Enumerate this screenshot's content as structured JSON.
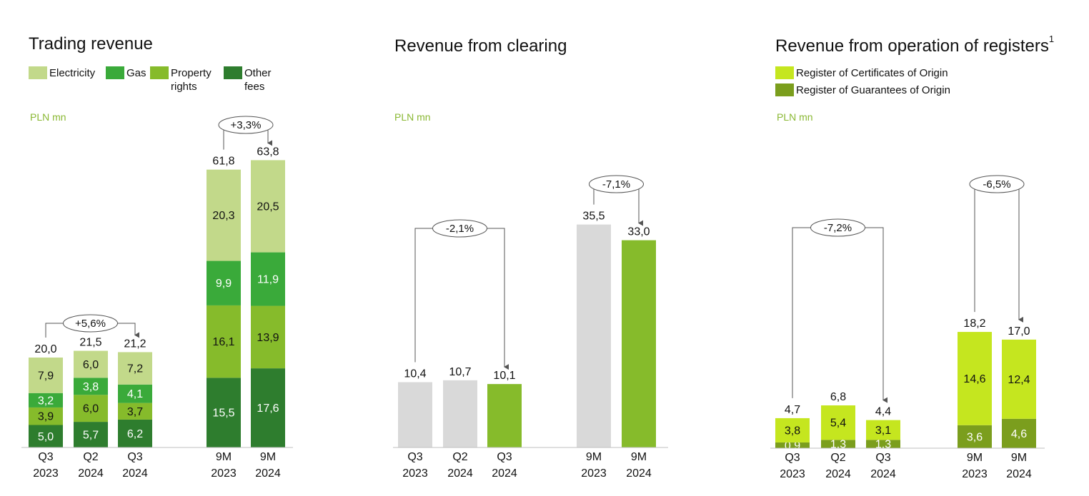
{
  "colors": {
    "electricity": "#c2d98a",
    "gas": "#3aaa3a",
    "property_rights": "#86bb2b",
    "other_fees": "#2e7d2e",
    "gray": "#d9d9d9",
    "clearing_green": "#86bb2b",
    "certificates": "#c5e61f",
    "guarantees": "#7b9e1d",
    "unit_text": "#8ab833"
  },
  "panels": [
    {
      "title": "Trading revenue",
      "superscript": "",
      "unit": "PLN mn",
      "legend": [
        {
          "label": "Electricity",
          "color": "#c2d98a"
        },
        {
          "label": "Gas",
          "color": "#3aaa3a"
        },
        {
          "label": "Property rights",
          "color": "#86bb2b"
        },
        {
          "label": "Other fees",
          "color": "#2e7d2e"
        }
      ]
    },
    {
      "title": "Revenue from clearing",
      "superscript": "",
      "unit": "PLN mn",
      "legend": []
    },
    {
      "title": "Revenue from operation of registers",
      "superscript": "1",
      "unit": "PLN mn",
      "legend": [
        {
          "label": "Register of Certificates of Origin",
          "color": "#c5e61f"
        },
        {
          "label": "Register of Guarantees of Origin",
          "color": "#7b9e1d"
        }
      ]
    }
  ],
  "chart_data": [
    {
      "type": "bar",
      "stacked": true,
      "title": "Trading revenue",
      "ylabel": "PLN mn",
      "categories": [
        "Q3 2023",
        "Q2 2024",
        "Q3 2024",
        "9M 2023",
        "9M 2024"
      ],
      "series": [
        {
          "name": "Other fees",
          "values": [
            5.0,
            5.7,
            6.2,
            15.5,
            17.6
          ],
          "labels": [
            "5,0",
            "5,7",
            "6,2",
            "15,5",
            "17,6"
          ]
        },
        {
          "name": "Property rights",
          "values": [
            3.9,
            6.0,
            3.7,
            16.1,
            13.9
          ],
          "labels": [
            "3,9",
            "6,0",
            "3,7",
            "16,1",
            "13,9"
          ]
        },
        {
          "name": "Gas",
          "values": [
            3.2,
            3.8,
            4.1,
            9.9,
            11.9
          ],
          "labels": [
            "3,2",
            "3,8",
            "4,1",
            "9,9",
            "11,9"
          ]
        },
        {
          "name": "Electricity",
          "values": [
            7.9,
            6.0,
            7.2,
            20.3,
            20.5
          ],
          "labels": [
            "7,9",
            "6,0",
            "7,2",
            "20,3",
            "20,5"
          ]
        }
      ],
      "totals": [
        20.0,
        21.5,
        21.2,
        61.8,
        63.8
      ],
      "total_labels": [
        "20,0",
        "21,5",
        "21,2",
        "61,8",
        "63,8"
      ],
      "changes": [
        {
          "label": "+5,6%",
          "from": "Q3 2023",
          "to": "Q3 2024"
        },
        {
          "label": "+3,3%",
          "from": "9M 2023",
          "to": "9M 2024"
        }
      ]
    },
    {
      "type": "bar",
      "title": "Revenue from clearing",
      "ylabel": "PLN mn",
      "categories": [
        "Q3 2023",
        "Q2 2024",
        "Q3 2024",
        "9M 2023",
        "9M 2024"
      ],
      "values": [
        10.4,
        10.7,
        10.1,
        35.5,
        33.0
      ],
      "value_labels": [
        "10,4",
        "10,7",
        "10,1",
        "35,5",
        "33,0"
      ],
      "highlighted": [
        false,
        false,
        true,
        false,
        true
      ],
      "changes": [
        {
          "label": "-2,1%",
          "from": "Q3 2023",
          "to": "Q3 2024"
        },
        {
          "label": "-7,1%",
          "from": "9M 2023",
          "to": "9M 2024"
        }
      ]
    },
    {
      "type": "bar",
      "stacked": true,
      "title": "Revenue from operation of registers",
      "ylabel": "PLN mn",
      "categories": [
        "Q3 2023",
        "Q2 2024",
        "Q3 2024",
        "9M 2023",
        "9M 2024"
      ],
      "series": [
        {
          "name": "Register of Guarantees of Origin",
          "values": [
            0.9,
            1.3,
            1.3,
            3.6,
            4.6
          ],
          "labels": [
            "0,9",
            "1,3",
            "1,3",
            "3,6",
            "4,6"
          ]
        },
        {
          "name": "Register of Certificates of Origin",
          "values": [
            3.8,
            5.4,
            3.1,
            14.6,
            12.4
          ],
          "labels": [
            "3,8",
            "5,4",
            "3,1",
            "14,6",
            "12,4"
          ]
        }
      ],
      "totals": [
        4.7,
        6.8,
        4.4,
        18.2,
        17.0
      ],
      "total_labels": [
        "4,7",
        "6,8",
        "4,4",
        "18,2",
        "17,0"
      ],
      "changes": [
        {
          "label": "-7,2%",
          "from": "Q3 2023",
          "to": "Q3 2024"
        },
        {
          "label": "-6,5%",
          "from": "9M 2023",
          "to": "9M 2024"
        }
      ]
    }
  ]
}
